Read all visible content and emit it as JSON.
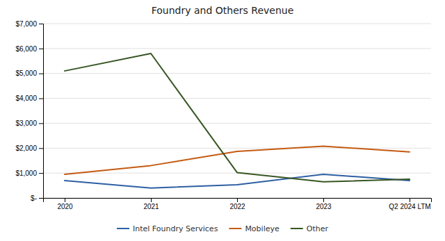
{
  "chart_data": {
    "type": "line",
    "title": "Foundry and Others Revenue",
    "categories": [
      "2020",
      "2021",
      "2022",
      "2023",
      "Q2 2024 LTM"
    ],
    "series": [
      {
        "name": "Intel Foundry Services",
        "color": "#2e5fa3",
        "values": [
          700,
          400,
          530,
          950,
          700
        ]
      },
      {
        "name": "Mobileye",
        "color": "#c55a11",
        "values": [
          950,
          1300,
          1870,
          2080,
          1850
        ]
      },
      {
        "name": "Other",
        "color": "#375623",
        "values": [
          5100,
          5800,
          1020,
          650,
          750
        ]
      }
    ],
    "ylim": [
      0,
      7000
    ],
    "yticks": [
      {
        "value": 0,
        "label": "$-"
      },
      {
        "value": 1000,
        "label": "$1,000"
      },
      {
        "value": 2000,
        "label": "$2,000"
      },
      {
        "value": 3000,
        "label": "$3,000"
      },
      {
        "value": 4000,
        "label": "$4,000"
      },
      {
        "value": 5000,
        "label": "$5,000"
      },
      {
        "value": 6000,
        "label": "$6,000"
      },
      {
        "value": 7000,
        "label": "$7,000"
      }
    ],
    "grid": true,
    "legend": "bottom"
  }
}
